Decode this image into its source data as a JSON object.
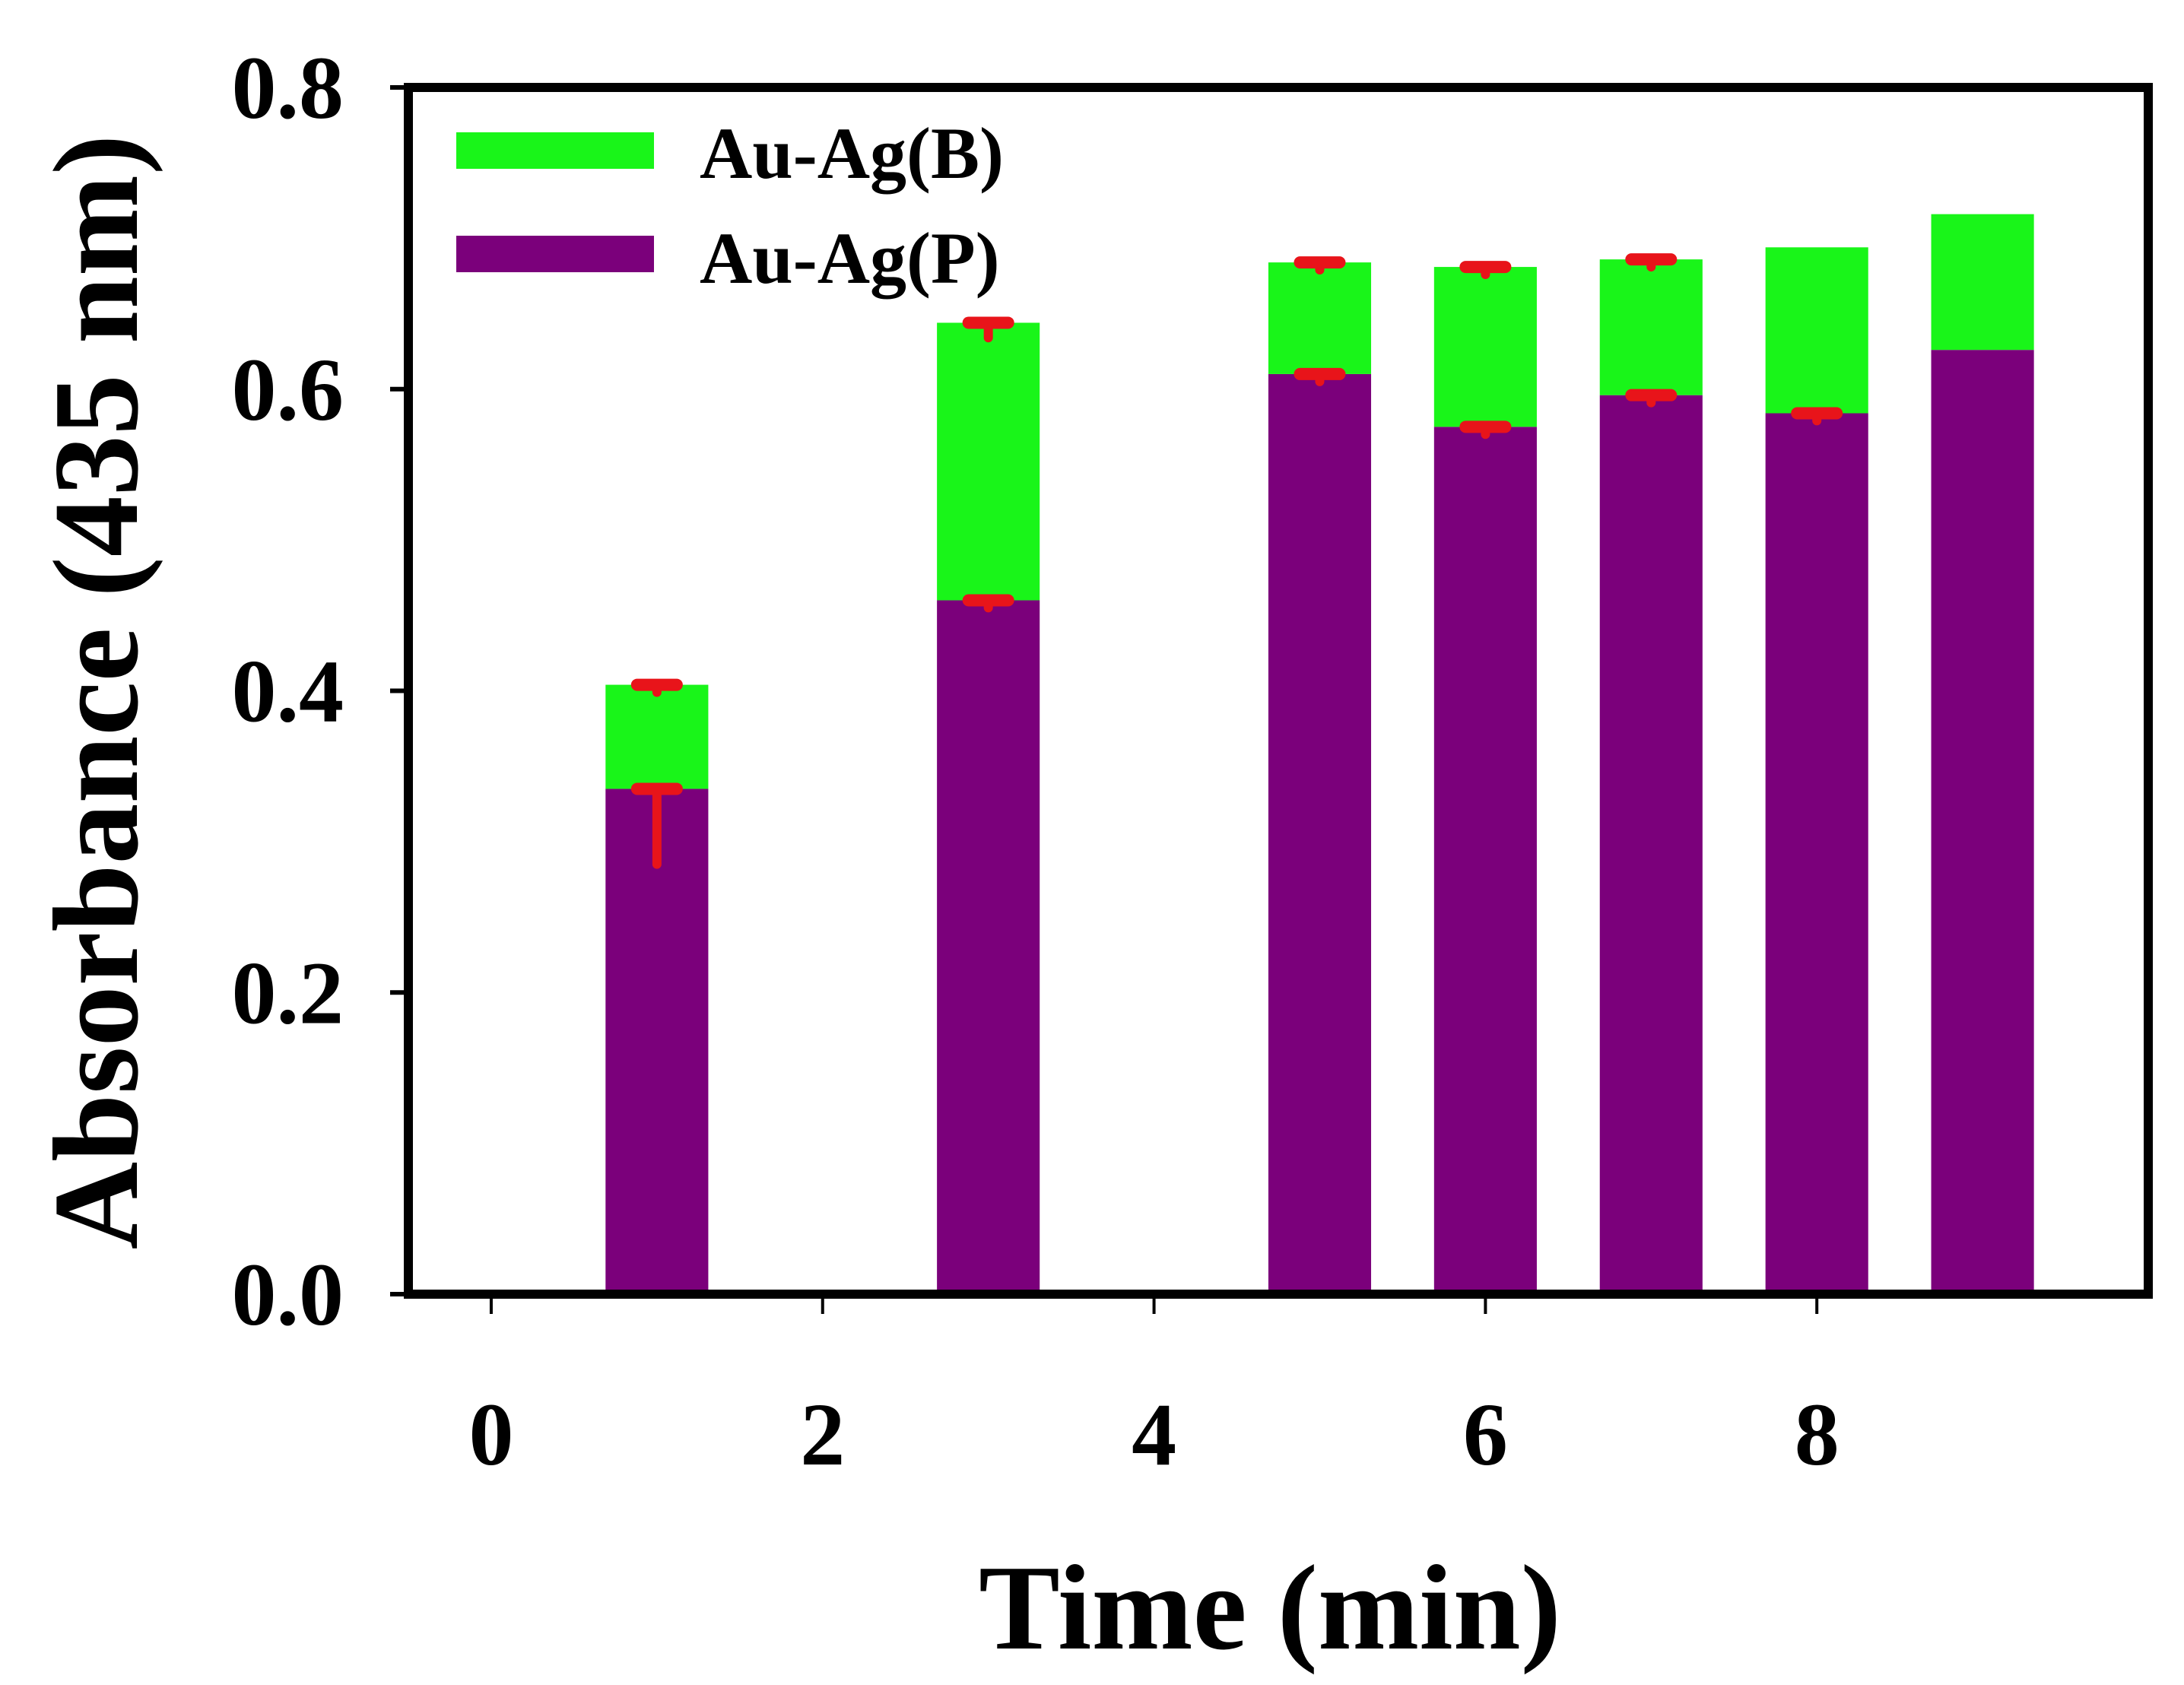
{
  "chart_data": {
    "type": "bar",
    "stacked": true,
    "title": "",
    "xlabel": "Time (min)",
    "ylabel": "Absorbance (435 nm)",
    "xlim": [
      -0.5,
      10
    ],
    "ylim": [
      0,
      0.8
    ],
    "xticks": [
      0,
      2,
      4,
      6,
      8
    ],
    "xtick_labels": [
      "0",
      "2",
      "4",
      "6",
      "8"
    ],
    "yticks": [
      0.0,
      0.2,
      0.4,
      0.6,
      0.8
    ],
    "ytick_labels": [
      "0.0",
      "0.2",
      "0.4",
      "0.6",
      "0.8"
    ],
    "grid": false,
    "legend_position": "top-left",
    "x": [
      1,
      3,
      5,
      6,
      7,
      8,
      9
    ],
    "bar_width_units": 0.62,
    "series": [
      {
        "name": "Au-Ag(P)",
        "color": "#7b007b",
        "values": [
          0.335,
          0.46,
          0.61,
          0.575,
          0.596,
          0.584,
          0.626
        ],
        "error": [
          0.05,
          0.005,
          0.005,
          0.005,
          0.005,
          0.005,
          null
        ]
      },
      {
        "name": "Au-Ag(B)",
        "color": "#19f519",
        "values": [
          0.069,
          0.184,
          0.074,
          0.106,
          0.09,
          0.11,
          0.09
        ],
        "error": [
          0.005,
          0.01,
          0.005,
          0.005,
          0.005,
          null,
          null
        ]
      }
    ],
    "legend_order": [
      "Au-Ag(B)",
      "Au-Ag(P)"
    ],
    "error_bar_color": "#e8141a"
  }
}
